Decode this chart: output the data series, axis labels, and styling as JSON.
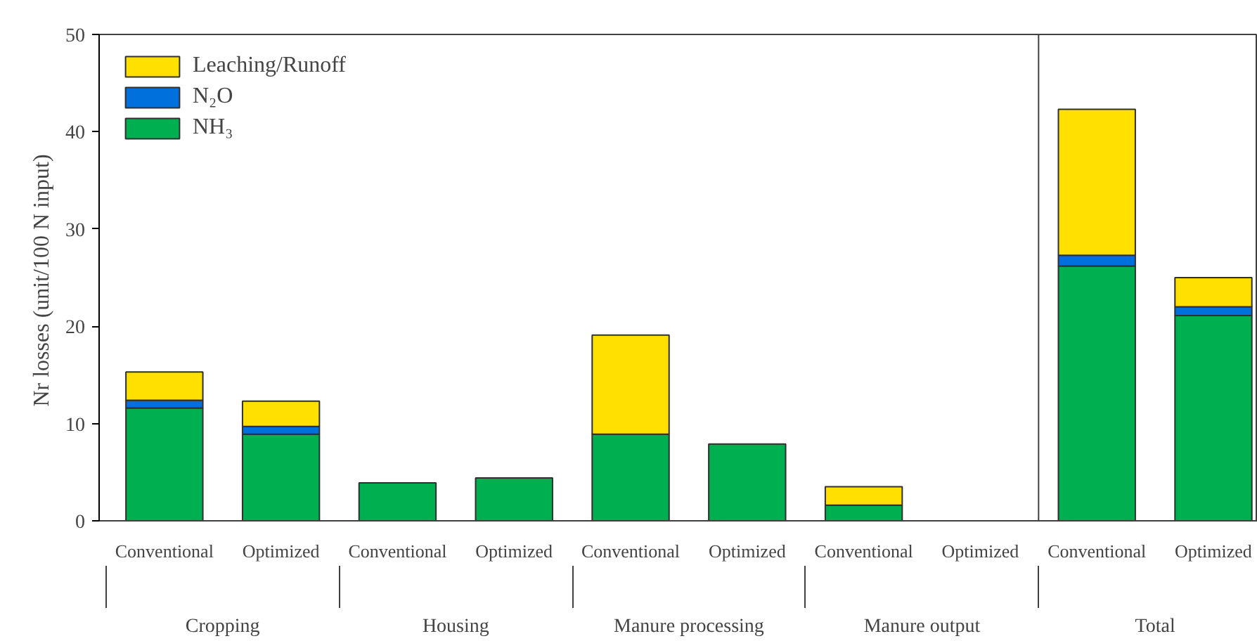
{
  "chart_data": {
    "type": "bar",
    "stacked": true,
    "ylabel": "Nr losses (unit/100  N input)",
    "categories": [
      "Conventional",
      "Optimized",
      "Conventional",
      "Optimized",
      "Conventional",
      "Optimized",
      "Conventional",
      "Optimized",
      "Conventional",
      "Optimized"
    ],
    "annotations": [
      "Cropping",
      "Housing",
      "Manure processing",
      "Manure output",
      "Total"
    ],
    "series": [
      {
        "name": "NH₃",
        "color": "#00b050",
        "values": [
          11.6,
          8.9,
          3.9,
          4.4,
          8.9,
          7.9,
          1.6,
          null,
          26.2,
          21.1
        ]
      },
      {
        "name": "N₂O",
        "color": "#0070dd",
        "values": [
          0.8,
          0.8,
          null,
          null,
          null,
          null,
          null,
          null,
          1.1,
          0.9
        ]
      },
      {
        "name": "Leaching/Runoff",
        "color": "#ffe000",
        "values": [
          2.9,
          2.6,
          null,
          null,
          10.2,
          null,
          1.9,
          null,
          15.0,
          3.0
        ]
      }
    ],
    "ylim": [
      0,
      50
    ],
    "yticks": [
      0,
      10,
      20,
      30,
      40,
      50
    ],
    "legend": "top left"
  }
}
